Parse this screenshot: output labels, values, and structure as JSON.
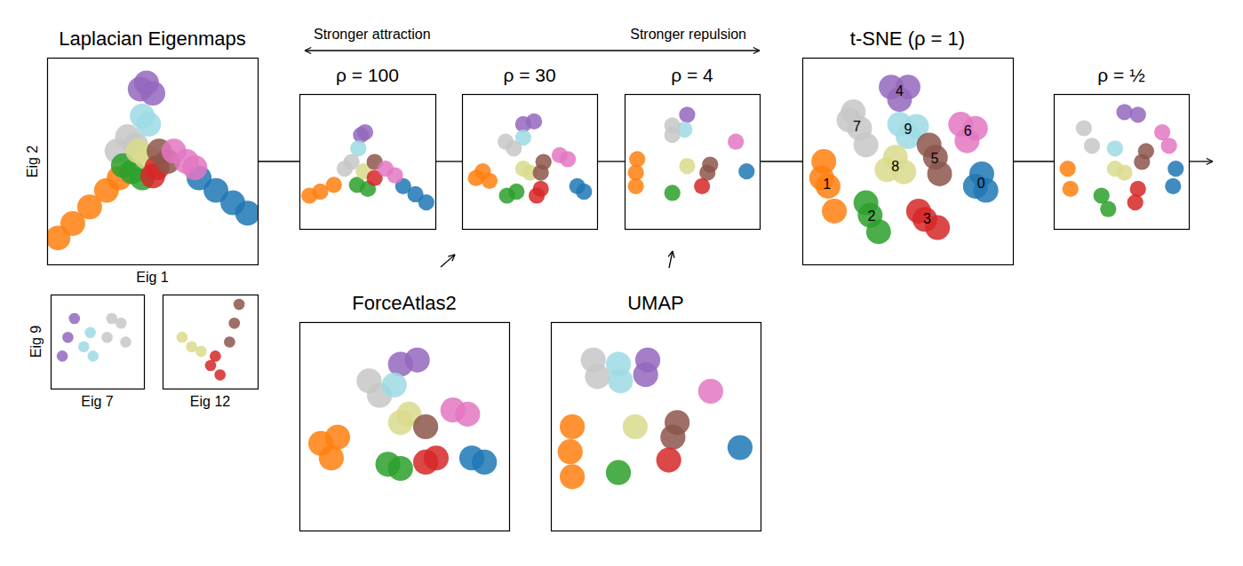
{
  "figure_annotations": [
    "Stronger attraction",
    "Stronger repulsion"
  ],
  "chart_data": [
    {
      "type": "scatter",
      "title": "Laplacian Eigenmaps",
      "x_label": "Eig 1",
      "y_label": "Eig 2",
      "xlim": [
        0,
        1
      ],
      "ylim": [
        0,
        1
      ],
      "tick_labels": false,
      "series": [
        {
          "color": "#ff7f0e",
          "x": [
            0.05,
            0.12,
            0.2,
            0.28,
            0.34
          ],
          "y": [
            0.13,
            0.2,
            0.28,
            0.36,
            0.42
          ]
        },
        {
          "color": "#1f77b4",
          "x": [
            0.95,
            0.88,
            0.8,
            0.72
          ],
          "y": [
            0.25,
            0.3,
            0.36,
            0.42
          ]
        },
        {
          "color": "#9467bd",
          "x": [
            0.44,
            0.47,
            0.5
          ],
          "y": [
            0.85,
            0.88,
            0.83
          ]
        },
        {
          "color": "#9edae5",
          "x": [
            0.45,
            0.48
          ],
          "y": [
            0.72,
            0.68
          ]
        },
        {
          "color": "#c7c7c7",
          "x": [
            0.38,
            0.33,
            0.42
          ],
          "y": [
            0.62,
            0.55,
            0.58
          ]
        },
        {
          "color": "#2ca02c",
          "x": [
            0.4,
            0.45,
            0.36
          ],
          "y": [
            0.45,
            0.42,
            0.48
          ]
        },
        {
          "color": "#dbdb8d",
          "x": [
            0.47,
            0.43
          ],
          "y": [
            0.52,
            0.55
          ]
        },
        {
          "color": "#d62728",
          "x": [
            0.52,
            0.5
          ],
          "y": [
            0.47,
            0.43
          ]
        },
        {
          "color": "#8c564b",
          "x": [
            0.53,
            0.57
          ],
          "y": [
            0.55,
            0.5
          ]
        },
        {
          "color": "#e377c2",
          "x": [
            0.6,
            0.66,
            0.7
          ],
          "y": [
            0.55,
            0.5,
            0.47
          ]
        }
      ]
    },
    {
      "type": "scatter",
      "x_label": "Eig 7",
      "y_label": "Eig 9",
      "xlim": [
        0,
        1
      ],
      "ylim": [
        0,
        1
      ],
      "tick_labels": false,
      "series": [
        {
          "color": "#9467bd",
          "x": [
            0.12,
            0.18,
            0.25
          ],
          "y": [
            0.35,
            0.55,
            0.75
          ]
        },
        {
          "color": "#9edae5",
          "x": [
            0.35,
            0.42,
            0.45
          ],
          "y": [
            0.45,
            0.6,
            0.35
          ]
        },
        {
          "color": "#c7c7c7",
          "x": [
            0.6,
            0.75,
            0.8,
            0.65
          ],
          "y": [
            0.55,
            0.7,
            0.5,
            0.75
          ]
        }
      ]
    },
    {
      "type": "scatter",
      "x_label": "Eig 12",
      "xlim": [
        0,
        1
      ],
      "ylim": [
        0,
        1
      ],
      "tick_labels": false,
      "series": [
        {
          "color": "#dbdb8d",
          "x": [
            0.2,
            0.3,
            0.4
          ],
          "y": [
            0.55,
            0.45,
            0.4
          ]
        },
        {
          "color": "#d62728",
          "x": [
            0.5,
            0.6,
            0.55
          ],
          "y": [
            0.25,
            0.15,
            0.35
          ]
        },
        {
          "color": "#8c564b",
          "x": [
            0.7,
            0.75,
            0.8
          ],
          "y": [
            0.5,
            0.7,
            0.9
          ]
        }
      ]
    },
    {
      "type": "scatter",
      "title": "ρ = 100",
      "xlim": [
        0,
        1
      ],
      "ylim": [
        0,
        1
      ],
      "tick_labels": false,
      "series": [
        {
          "color": "#ff7f0e",
          "x": [
            0.07,
            0.15,
            0.25
          ],
          "y": [
            0.25,
            0.28,
            0.33
          ]
        },
        {
          "color": "#1f77b4",
          "x": [
            0.93,
            0.85,
            0.76
          ],
          "y": [
            0.2,
            0.26,
            0.32
          ]
        },
        {
          "color": "#9467bd",
          "x": [
            0.45,
            0.48
          ],
          "y": [
            0.7,
            0.72
          ]
        },
        {
          "color": "#9edae5",
          "x": [
            0.43
          ],
          "y": [
            0.6
          ]
        },
        {
          "color": "#c7c7c7",
          "x": [
            0.38,
            0.33
          ],
          "y": [
            0.5,
            0.45
          ]
        },
        {
          "color": "#2ca02c",
          "x": [
            0.42,
            0.5
          ],
          "y": [
            0.33,
            0.3
          ]
        },
        {
          "color": "#dbdb8d",
          "x": [
            0.47
          ],
          "y": [
            0.43
          ]
        },
        {
          "color": "#d62728",
          "x": [
            0.55
          ],
          "y": [
            0.38
          ]
        },
        {
          "color": "#8c564b",
          "x": [
            0.55
          ],
          "y": [
            0.5
          ]
        },
        {
          "color": "#e377c2",
          "x": [
            0.63,
            0.7
          ],
          "y": [
            0.45,
            0.4
          ]
        }
      ]
    },
    {
      "type": "scatter",
      "title": "ρ = 30",
      "xlim": [
        0,
        1
      ],
      "ylim": [
        0,
        1
      ],
      "tick_labels": false,
      "series": [
        {
          "color": "#ff7f0e",
          "x": [
            0.1,
            0.15,
            0.2
          ],
          "y": [
            0.38,
            0.43,
            0.36
          ]
        },
        {
          "color": "#1f77b4",
          "x": [
            0.85,
            0.9
          ],
          "y": [
            0.32,
            0.28
          ]
        },
        {
          "color": "#9467bd",
          "x": [
            0.45,
            0.53
          ],
          "y": [
            0.78,
            0.8
          ]
        },
        {
          "color": "#9edae5",
          "x": [
            0.45
          ],
          "y": [
            0.68
          ]
        },
        {
          "color": "#c7c7c7",
          "x": [
            0.32,
            0.38
          ],
          "y": [
            0.65,
            0.6
          ]
        },
        {
          "color": "#2ca02c",
          "x": [
            0.33,
            0.4
          ],
          "y": [
            0.25,
            0.28
          ]
        },
        {
          "color": "#d62728",
          "x": [
            0.55,
            0.58
          ],
          "y": [
            0.25,
            0.3
          ]
        },
        {
          "color": "#dbdb8d",
          "x": [
            0.45,
            0.5
          ],
          "y": [
            0.45,
            0.42
          ]
        },
        {
          "color": "#8c564b",
          "x": [
            0.6,
            0.58
          ],
          "y": [
            0.5,
            0.42
          ]
        },
        {
          "color": "#e377c2",
          "x": [
            0.72,
            0.78
          ],
          "y": [
            0.55,
            0.52
          ]
        }
      ]
    },
    {
      "type": "scatter",
      "title": "ρ = 4",
      "xlim": [
        0,
        1
      ],
      "ylim": [
        0,
        1
      ],
      "tick_labels": false,
      "series": [
        {
          "color": "#ff7f0e",
          "x": [
            0.08,
            0.08,
            0.09
          ],
          "y": [
            0.32,
            0.42,
            0.52
          ]
        },
        {
          "color": "#9467bd",
          "x": [
            0.46
          ],
          "y": [
            0.85
          ]
        },
        {
          "color": "#9edae5",
          "x": [
            0.44
          ],
          "y": [
            0.74
          ]
        },
        {
          "color": "#c7c7c7",
          "x": [
            0.35,
            0.35
          ],
          "y": [
            0.77,
            0.7
          ]
        },
        {
          "color": "#e377c2",
          "x": [
            0.82
          ],
          "y": [
            0.65
          ]
        },
        {
          "color": "#dbdb8d",
          "x": [
            0.46
          ],
          "y": [
            0.47
          ]
        },
        {
          "color": "#8c564b",
          "x": [
            0.63,
            0.61
          ],
          "y": [
            0.48,
            0.42
          ]
        },
        {
          "color": "#d62728",
          "x": [
            0.57
          ],
          "y": [
            0.32
          ]
        },
        {
          "color": "#2ca02c",
          "x": [
            0.35
          ],
          "y": [
            0.27
          ]
        },
        {
          "color": "#1f77b4",
          "x": [
            0.9
          ],
          "y": [
            0.43
          ]
        }
      ]
    },
    {
      "type": "scatter",
      "title": "t-SNE (ρ = 1)",
      "xlim": [
        0,
        1
      ],
      "ylim": [
        0,
        1
      ],
      "tick_labels": false,
      "data_labels": true,
      "series": [
        {
          "name": "4",
          "color": "#9467bd",
          "x": [
            0.42,
            0.5,
            0.46
          ],
          "y": [
            0.86,
            0.86,
            0.8
          ]
        },
        {
          "name": "7",
          "color": "#c7c7c7",
          "x": [
            0.24,
            0.27,
            0.3,
            0.22
          ],
          "y": [
            0.74,
            0.66,
            0.58,
            0.7
          ]
        },
        {
          "name": "9",
          "color": "#9edae5",
          "x": [
            0.46,
            0.54,
            0.5
          ],
          "y": [
            0.68,
            0.67,
            0.62
          ]
        },
        {
          "name": "6",
          "color": "#e377c2",
          "x": [
            0.75,
            0.82,
            0.78
          ],
          "y": [
            0.68,
            0.66,
            0.6
          ]
        },
        {
          "name": "1",
          "color": "#ff7f0e",
          "x": [
            0.1,
            0.12,
            0.15,
            0.09
          ],
          "y": [
            0.5,
            0.38,
            0.26,
            0.42
          ]
        },
        {
          "name": "8",
          "color": "#dbdb8d",
          "x": [
            0.4,
            0.48,
            0.44
          ],
          "y": [
            0.46,
            0.45,
            0.52
          ]
        },
        {
          "name": "5",
          "color": "#8c564b",
          "x": [
            0.63,
            0.65,
            0.6
          ],
          "y": [
            0.52,
            0.44,
            0.58
          ]
        },
        {
          "name": "0",
          "color": "#1f77b4",
          "x": [
            0.85,
            0.87,
            0.82
          ],
          "y": [
            0.44,
            0.36,
            0.38
          ]
        },
        {
          "name": "2",
          "color": "#2ca02c",
          "x": [
            0.32,
            0.36,
            0.3
          ],
          "y": [
            0.24,
            0.16,
            0.3
          ]
        },
        {
          "name": "3",
          "color": "#d62728",
          "x": [
            0.58,
            0.64,
            0.55
          ],
          "y": [
            0.22,
            0.18,
            0.26
          ]
        }
      ]
    },
    {
      "type": "scatter",
      "title": "ρ = ½",
      "xlim": [
        0,
        1
      ],
      "ylim": [
        0,
        1
      ],
      "tick_labels": false,
      "series": [
        {
          "color": "#9467bd",
          "x": [
            0.52,
            0.62
          ],
          "y": [
            0.87,
            0.85
          ]
        },
        {
          "color": "#c7c7c7",
          "x": [
            0.22,
            0.28
          ],
          "y": [
            0.75,
            0.62
          ]
        },
        {
          "color": "#9edae5",
          "x": [
            0.45
          ],
          "y": [
            0.6
          ]
        },
        {
          "color": "#e377c2",
          "x": [
            0.8,
            0.85
          ],
          "y": [
            0.72,
            0.62
          ]
        },
        {
          "color": "#dbdb8d",
          "x": [
            0.45,
            0.52
          ],
          "y": [
            0.45,
            0.42
          ]
        },
        {
          "color": "#8c564b",
          "x": [
            0.65,
            0.68
          ],
          "y": [
            0.5,
            0.58
          ]
        },
        {
          "color": "#ff7f0e",
          "x": [
            0.1,
            0.12
          ],
          "y": [
            0.45,
            0.3
          ]
        },
        {
          "color": "#2ca02c",
          "x": [
            0.35,
            0.4
          ],
          "y": [
            0.25,
            0.15
          ]
        },
        {
          "color": "#d62728",
          "x": [
            0.6,
            0.62
          ],
          "y": [
            0.2,
            0.3
          ]
        },
        {
          "color": "#1f77b4",
          "x": [
            0.9,
            0.88
          ],
          "y": [
            0.45,
            0.32
          ]
        }
      ]
    },
    {
      "type": "scatter",
      "title": "ForceAtlas2",
      "xlim": [
        0,
        1
      ],
      "ylim": [
        0,
        1
      ],
      "tick_labels": false,
      "series": [
        {
          "color": "#ff7f0e",
          "x": [
            0.1,
            0.18,
            0.15
          ],
          "y": [
            0.42,
            0.45,
            0.35
          ]
        },
        {
          "color": "#9467bd",
          "x": [
            0.48,
            0.56
          ],
          "y": [
            0.8,
            0.82
          ]
        },
        {
          "color": "#c7c7c7",
          "x": [
            0.33,
            0.38
          ],
          "y": [
            0.72,
            0.65
          ]
        },
        {
          "color": "#9edae5",
          "x": [
            0.45
          ],
          "y": [
            0.7
          ]
        },
        {
          "color": "#dbdb8d",
          "x": [
            0.48,
            0.52
          ],
          "y": [
            0.52,
            0.56
          ]
        },
        {
          "color": "#8c564b",
          "x": [
            0.6
          ],
          "y": [
            0.5
          ]
        },
        {
          "color": "#e377c2",
          "x": [
            0.73,
            0.8
          ],
          "y": [
            0.58,
            0.56
          ]
        },
        {
          "color": "#2ca02c",
          "x": [
            0.42,
            0.48
          ],
          "y": [
            0.32,
            0.3
          ]
        },
        {
          "color": "#d62728",
          "x": [
            0.6,
            0.65
          ],
          "y": [
            0.33,
            0.35
          ]
        },
        {
          "color": "#1f77b4",
          "x": [
            0.82,
            0.88
          ],
          "y": [
            0.35,
            0.33
          ]
        }
      ]
    },
    {
      "type": "scatter",
      "title": "UMAP",
      "xlim": [
        0,
        1
      ],
      "ylim": [
        0,
        1
      ],
      "tick_labels": false,
      "series": [
        {
          "color": "#c7c7c7",
          "x": [
            0.2,
            0.22
          ],
          "y": [
            0.82,
            0.74
          ]
        },
        {
          "color": "#9edae5",
          "x": [
            0.32,
            0.33
          ],
          "y": [
            0.8,
            0.72
          ]
        },
        {
          "color": "#9467bd",
          "x": [
            0.46,
            0.45
          ],
          "y": [
            0.82,
            0.75
          ]
        },
        {
          "color": "#e377c2",
          "x": [
            0.76
          ],
          "y": [
            0.67
          ]
        },
        {
          "color": "#ff7f0e",
          "x": [
            0.1,
            0.09,
            0.1
          ],
          "y": [
            0.5,
            0.38,
            0.26
          ]
        },
        {
          "color": "#dbdb8d",
          "x": [
            0.4
          ],
          "y": [
            0.5
          ]
        },
        {
          "color": "#8c564b",
          "x": [
            0.6,
            0.58
          ],
          "y": [
            0.52,
            0.45
          ]
        },
        {
          "color": "#d62728",
          "x": [
            0.56
          ],
          "y": [
            0.34
          ]
        },
        {
          "color": "#2ca02c",
          "x": [
            0.32
          ],
          "y": [
            0.28
          ]
        },
        {
          "color": "#1f77b4",
          "x": [
            0.9
          ],
          "y": [
            0.4
          ]
        }
      ]
    }
  ]
}
